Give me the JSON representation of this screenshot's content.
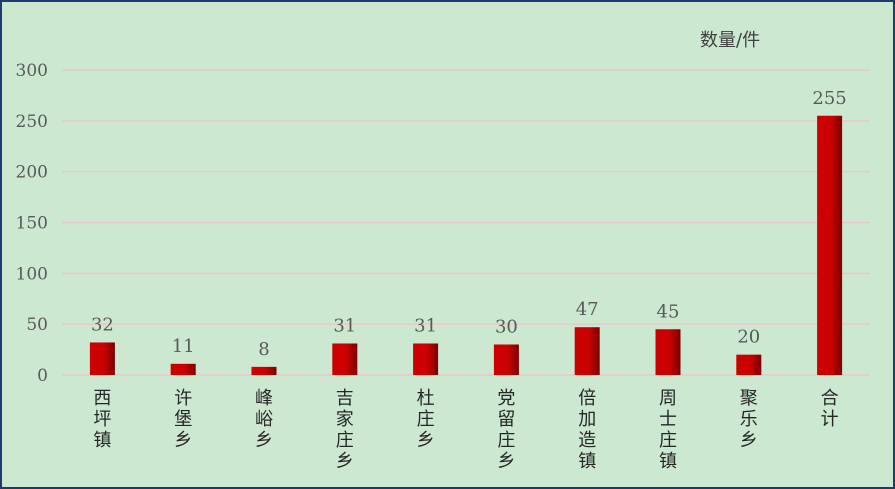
{
  "chart_data": {
    "type": "bar",
    "unit_label": "数量/件",
    "categories": [
      "西坪镇",
      "许堡乡",
      "峰峪乡",
      "吉家庄乡",
      "杜庄乡",
      "党留庄乡",
      "倍加造镇",
      "周士庄镇",
      "聚乐乡",
      "合计"
    ],
    "values": [
      32,
      11,
      8,
      31,
      31,
      30,
      47,
      45,
      20,
      255
    ],
    "yticks": [
      0,
      50,
      100,
      150,
      200,
      250,
      300
    ],
    "ylim": [
      0,
      300
    ],
    "grid": true,
    "bar_color": "#cc0000",
    "bar_color_dark": "#7a0000",
    "gridline_color": "#e6c8cc",
    "text_color": "#595959",
    "background": "#cde8d0"
  }
}
